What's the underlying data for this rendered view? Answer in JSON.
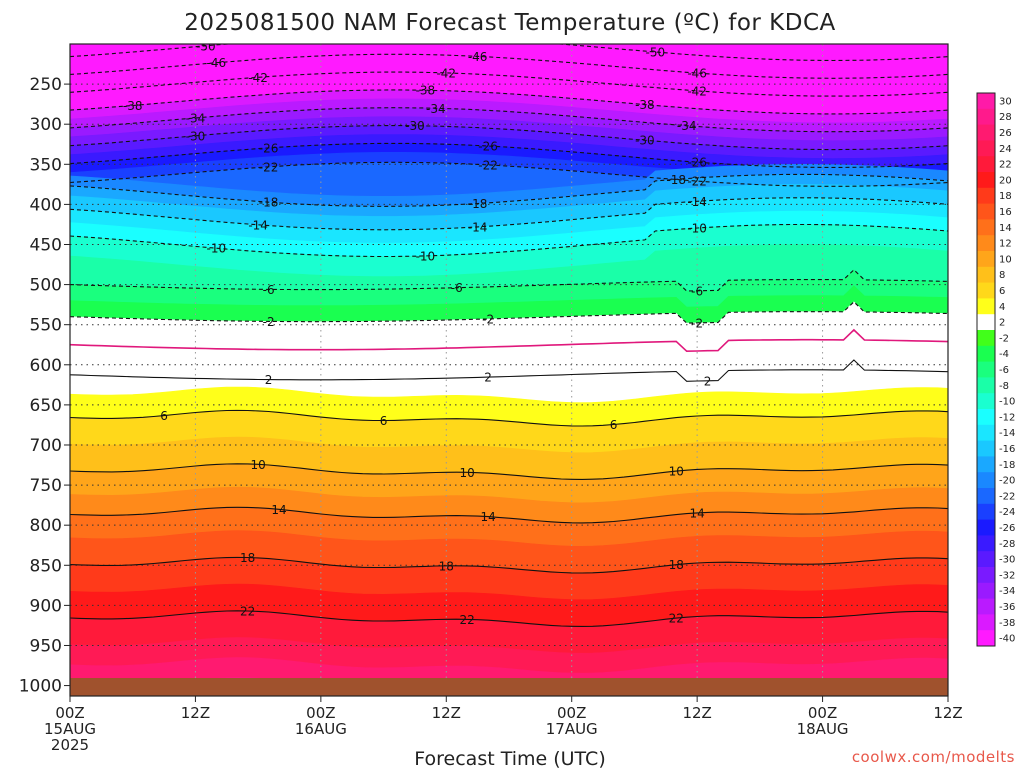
{
  "chart_data": {
    "type": "heatmap",
    "title": "2025081500 NAM Forecast Temperature (ºC) for KDCA",
    "xlabel": "Forecast Time (UTC)",
    "x_ticks": [
      {
        "hour": 0,
        "lines": [
          "00Z",
          "15AUG",
          "2025"
        ]
      },
      {
        "hour": 12,
        "lines": [
          "12Z"
        ]
      },
      {
        "hour": 24,
        "lines": [
          "00Z",
          "16AUG"
        ]
      },
      {
        "hour": 36,
        "lines": [
          "12Z"
        ]
      },
      {
        "hour": 48,
        "lines": [
          "00Z",
          "17AUG"
        ]
      },
      {
        "hour": 60,
        "lines": [
          "12Z"
        ]
      },
      {
        "hour": 72,
        "lines": [
          "00Z",
          "18AUG"
        ]
      },
      {
        "hour": 84,
        "lines": [
          "12Z"
        ]
      }
    ],
    "x_range_hours": [
      0,
      84
    ],
    "y_axis": "pressure (hPa)",
    "y_ticks": [
      250,
      300,
      350,
      400,
      450,
      500,
      550,
      600,
      650,
      700,
      750,
      800,
      850,
      900,
      950,
      1000
    ],
    "y_range": [
      200,
      1013
    ],
    "surface_level_hPa": 1000,
    "colorbar": {
      "labels": [
        "30",
        "28",
        "26",
        "24",
        "22",
        "20",
        "18",
        "16",
        "14",
        "12",
        "10",
        "8",
        "6",
        "4",
        "2",
        "-2",
        "-4",
        "-6",
        "-8",
        "-10",
        "-12",
        "-14",
        "-16",
        "-18",
        "-20",
        "-22",
        "-24",
        "-26",
        "-28",
        "-30",
        "-32",
        "-34",
        "-36",
        "-38",
        "-40"
      ],
      "colors": [
        "#ff1aa8",
        "#ff1a8c",
        "#ff1a70",
        "#ff1a55",
        "#ff1a3a",
        "#ff1a1a",
        "#ff3a1a",
        "#ff551a",
        "#ff701a",
        "#ff8a1a",
        "#ffa51a",
        "#ffc01a",
        "#ffd81a",
        "#ffff1a",
        "#ffffff",
        "#41ff1a",
        "#1aff50",
        "#1aff7e",
        "#1affa8",
        "#1affd0",
        "#1affff",
        "#1ae6ff",
        "#1ac8ff",
        "#1aa8ff",
        "#1a88ff",
        "#1a68ff",
        "#1a40ff",
        "#1a1aff",
        "#3a1aff",
        "#5a1aff",
        "#7a1aff",
        "#9a1aff",
        "#ba1aff",
        "#da1aff",
        "#ff1aff"
      ]
    },
    "contour_levels_C": [
      -50,
      -46,
      -42,
      -38,
      -34,
      -30,
      -26,
      -22,
      -18,
      -14,
      -10,
      -6,
      -2,
      2,
      6,
      10,
      14,
      18,
      22
    ],
    "freezing_line_C": 0,
    "temperature_profile": {
      "levels_hPa": [
        200,
        250,
        300,
        350,
        400,
        450,
        500,
        550,
        600,
        650,
        700,
        750,
        800,
        850,
        900,
        950,
        1000
      ],
      "mean_temp_C": [
        -51,
        -42,
        -33,
        -24,
        -16,
        -10,
        -6,
        -1,
        1,
        5,
        8,
        11,
        15,
        18,
        21,
        24,
        28
      ]
    },
    "contour_labels": [
      {
        "t": -50,
        "hours": [
          13,
          33,
          56
        ]
      },
      {
        "t": -46,
        "hours": [
          14,
          39,
          60
        ]
      },
      {
        "t": -42,
        "hours": [
          18,
          36,
          60
        ]
      },
      {
        "t": -38,
        "hours": [
          6,
          34,
          55
        ]
      },
      {
        "t": -34,
        "hours": [
          12,
          35,
          59
        ]
      },
      {
        "t": -30,
        "hours": [
          12,
          33,
          55
        ]
      },
      {
        "t": -26,
        "hours": [
          19,
          40,
          60
        ]
      },
      {
        "t": -22,
        "hours": [
          19,
          40,
          60
        ]
      },
      {
        "t": -18,
        "hours": [
          19,
          39,
          58
        ]
      },
      {
        "t": -14,
        "hours": [
          18,
          39,
          60
        ]
      },
      {
        "t": -10,
        "hours": [
          14,
          34,
          60
        ]
      },
      {
        "t": -6,
        "hours": [
          19,
          37,
          60
        ]
      },
      {
        "t": -2,
        "hours": [
          19,
          40,
          60
        ]
      },
      {
        "t": 2,
        "hours": [
          19,
          40,
          61
        ]
      },
      {
        "t": 6,
        "hours": [
          9,
          30,
          52
        ]
      },
      {
        "t": 10,
        "hours": [
          18,
          38,
          58
        ]
      },
      {
        "t": 14,
        "hours": [
          20,
          40,
          60
        ]
      },
      {
        "t": 18,
        "hours": [
          17,
          36,
          58
        ]
      },
      {
        "t": 22,
        "hours": [
          17,
          38,
          58
        ]
      }
    ]
  },
  "credit": "coolwx.com/modelts"
}
